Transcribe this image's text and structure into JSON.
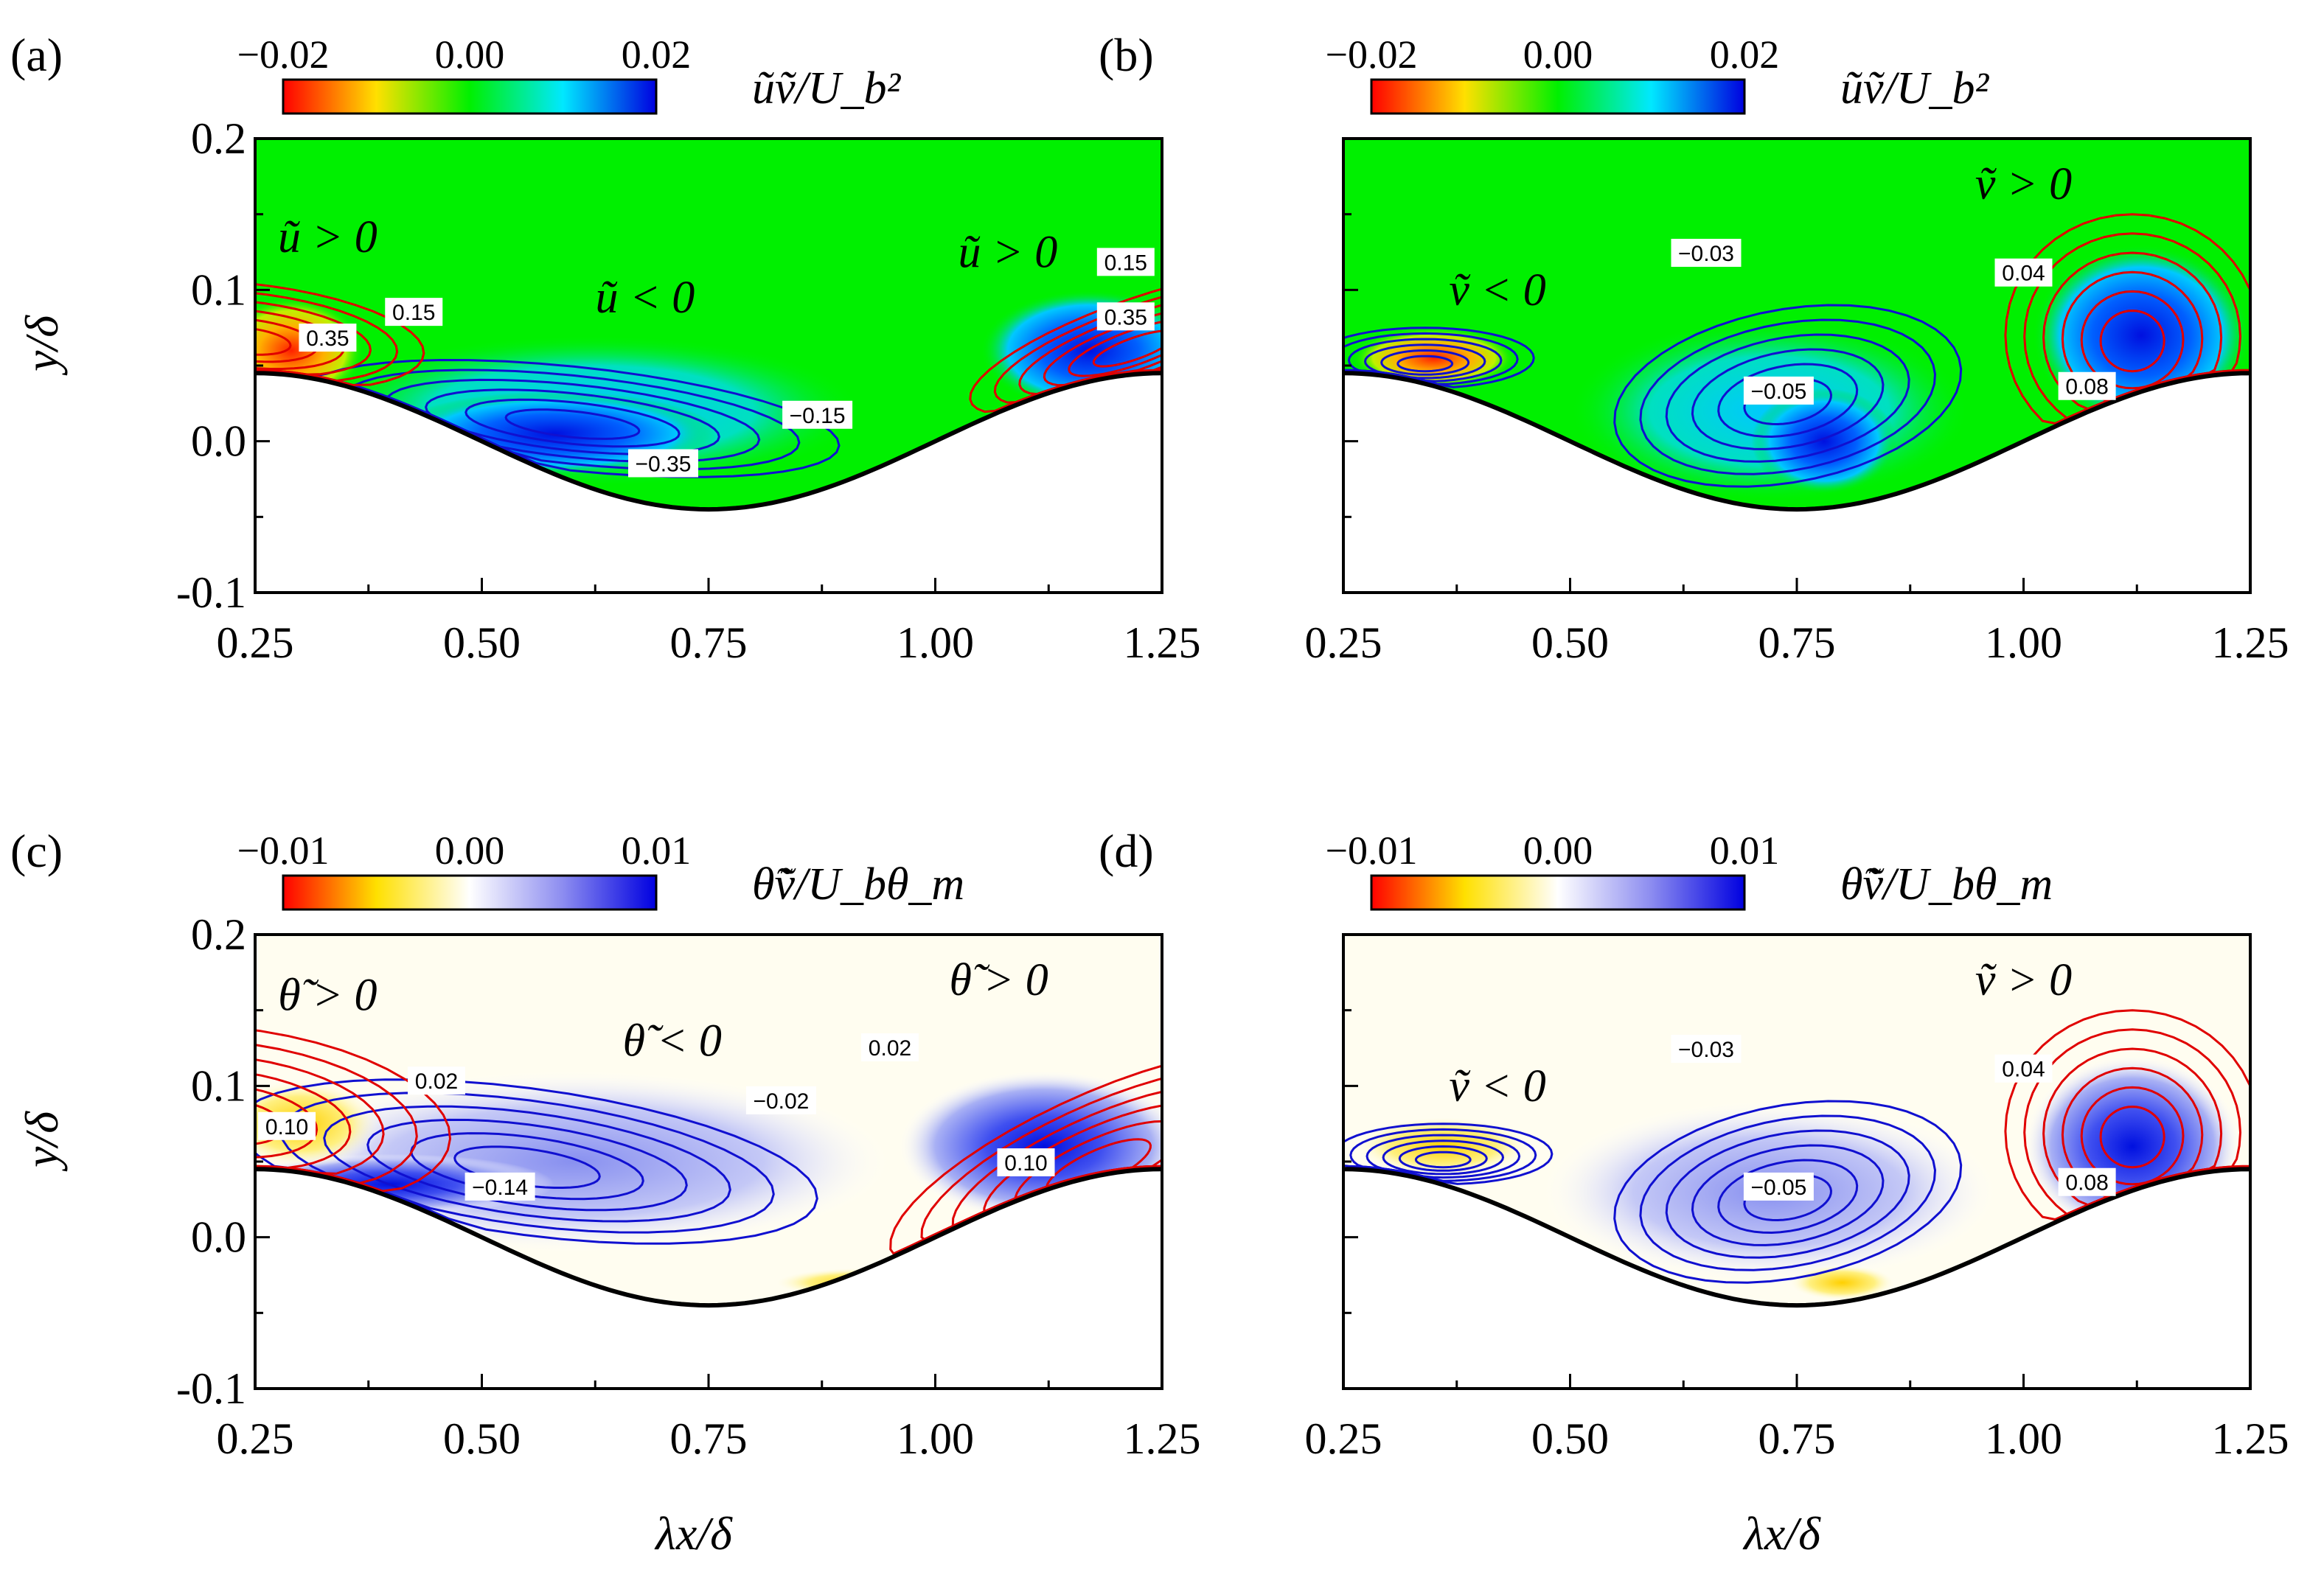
{
  "chart_data": [
    {
      "panel": "(a)",
      "type": "heatmap",
      "colormap": "diverging-green",
      "colorbar": {
        "ticks": [
          "−0.02",
          "0.00",
          "0.02"
        ],
        "title": "ũṽ/U_b²",
        "range": [
          -0.02,
          0.02
        ]
      },
      "contour_field": "ũ",
      "ylabel": "y/δ",
      "xlabel": "",
      "xticks": [
        "0.25",
        "0.50",
        "0.75",
        "1.00",
        "1.25"
      ],
      "yticks": [
        "0.2",
        "0.1",
        "0.0",
        "-0.1"
      ],
      "xlim": [
        0.25,
        1.25
      ],
      "ylim": [
        -0.1,
        0.2
      ],
      "annotations": [
        "ũ > 0",
        "ũ < 0",
        "ũ > 0"
      ],
      "contour_labels": [
        "0.35",
        "0.15",
        "−0.15",
        "−0.35",
        "0.15",
        "0.35"
      ]
    },
    {
      "panel": "(b)",
      "type": "heatmap",
      "colormap": "diverging-green",
      "colorbar": {
        "ticks": [
          "−0.02",
          "0.00",
          "0.02"
        ],
        "title": "ũṽ/U_b²",
        "range": [
          -0.02,
          0.02
        ]
      },
      "contour_field": "ṽ",
      "ylabel": "",
      "xlabel": "",
      "xticks": [
        "0.25",
        "0.50",
        "0.75",
        "1.00",
        "1.25"
      ],
      "yticks": [],
      "xlim": [
        0.25,
        1.25
      ],
      "ylim": [
        -0.1,
        0.2
      ],
      "annotations": [
        "ṽ < 0",
        "ṽ > 0"
      ],
      "contour_labels": [
        "−0.03",
        "−0.05",
        "0.04",
        "0.08"
      ]
    },
    {
      "panel": "(c)",
      "type": "heatmap",
      "colormap": "diverging-white",
      "colorbar": {
        "ticks": [
          "−0.01",
          "0.00",
          "0.01"
        ],
        "title": "θ̃ṽ/U_bθ_m",
        "range": [
          -0.01,
          0.01
        ]
      },
      "contour_field": "θ̃",
      "ylabel": "y/δ",
      "xlabel": "λx/δ",
      "xticks": [
        "0.25",
        "0.50",
        "0.75",
        "1.00",
        "1.25"
      ],
      "yticks": [
        "0.2",
        "0.1",
        "0.0",
        "-0.1"
      ],
      "xlim": [
        0.25,
        1.25
      ],
      "ylim": [
        -0.1,
        0.2
      ],
      "annotations": [
        "θ̃ > 0",
        "θ̃ < 0",
        "θ̃ > 0"
      ],
      "contour_labels": [
        "0.10",
        "0.02",
        "−0.14",
        "−0.02",
        "0.02",
        "0.10"
      ]
    },
    {
      "panel": "(d)",
      "type": "heatmap",
      "colormap": "diverging-white",
      "colorbar": {
        "ticks": [
          "−0.01",
          "0.00",
          "0.01"
        ],
        "title": "θ̃ṽ/U_bθ_m",
        "range": [
          -0.01,
          0.01
        ]
      },
      "contour_field": "ṽ",
      "ylabel": "",
      "xlabel": "λx/δ",
      "xticks": [
        "0.25",
        "0.50",
        "0.75",
        "1.00",
        "1.25"
      ],
      "yticks": [],
      "xlim": [
        0.25,
        1.25
      ],
      "ylim": [
        -0.1,
        0.2
      ],
      "annotations": [
        "ṽ < 0",
        "ṽ > 0"
      ],
      "contour_labels": [
        "−0.03",
        "−0.05",
        "0.04",
        "0.08"
      ]
    }
  ],
  "colors": {
    "positive_contour": "#e00000",
    "negative_contour": "#1010d0",
    "wall": "#000000",
    "green_bg": "#00f000",
    "white_bg": "#fffdf0"
  }
}
